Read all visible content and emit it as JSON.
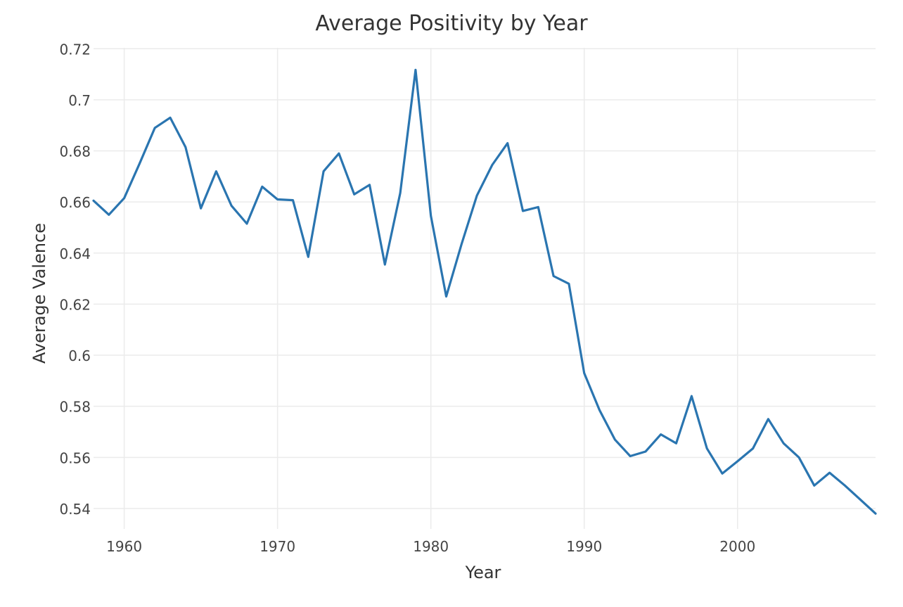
{
  "chart_data": {
    "type": "line",
    "title": "Average Positivity by Year",
    "xlabel": "Year",
    "ylabel": "Average Valence",
    "xlim": [
      1958,
      2009
    ],
    "ylim": [
      0.532,
      0.722
    ],
    "x_ticks": [
      1960,
      1970,
      1980,
      1990,
      2000
    ],
    "y_ticks": [
      0.54,
      0.56,
      0.58,
      0.6,
      0.62,
      0.64,
      0.66,
      0.68,
      0.7,
      0.72
    ],
    "y_tick_labels": [
      "0.54",
      "0.56",
      "0.58",
      "0.6",
      "0.62",
      "0.64",
      "0.66",
      "0.68",
      "0.7",
      "0.72"
    ],
    "grid": true,
    "line_color": "#2a75b0",
    "series": [
      {
        "x": [
          1958,
          1959,
          1960,
          1961,
          1962,
          1963,
          1964,
          1965,
          1966,
          1967,
          1968,
          1969,
          1970,
          1971,
          1972,
          1973,
          1974,
          1975,
          1976,
          1977,
          1978,
          1979,
          1980,
          1981,
          1982,
          1983,
          1984,
          1985,
          1986,
          1987,
          1988,
          1989,
          1990,
          1991,
          1992,
          1993,
          1994,
          1995,
          1996,
          1997,
          1998,
          1999,
          2000,
          2001,
          2002,
          2003,
          2004,
          2005,
          2006,
          2007,
          2008,
          2009
        ],
        "values": [
          0.6605,
          0.655,
          0.6615,
          0.675,
          0.689,
          0.693,
          0.6815,
          0.6575,
          0.672,
          0.6585,
          0.6515,
          0.666,
          0.661,
          0.6607,
          0.6385,
          0.672,
          0.679,
          0.663,
          0.6667,
          0.6355,
          0.6635,
          0.7117,
          0.6545,
          0.623,
          0.6435,
          0.6625,
          0.6745,
          0.683,
          0.6565,
          0.658,
          0.631,
          0.628,
          0.593,
          0.5785,
          0.567,
          0.5605,
          0.5623,
          0.569,
          0.5655,
          0.584,
          0.5635,
          0.5537,
          0.5585,
          0.5635,
          0.575,
          0.5655,
          0.56,
          0.549,
          0.554,
          0.549,
          0.5435,
          0.538
        ]
      }
    ]
  }
}
